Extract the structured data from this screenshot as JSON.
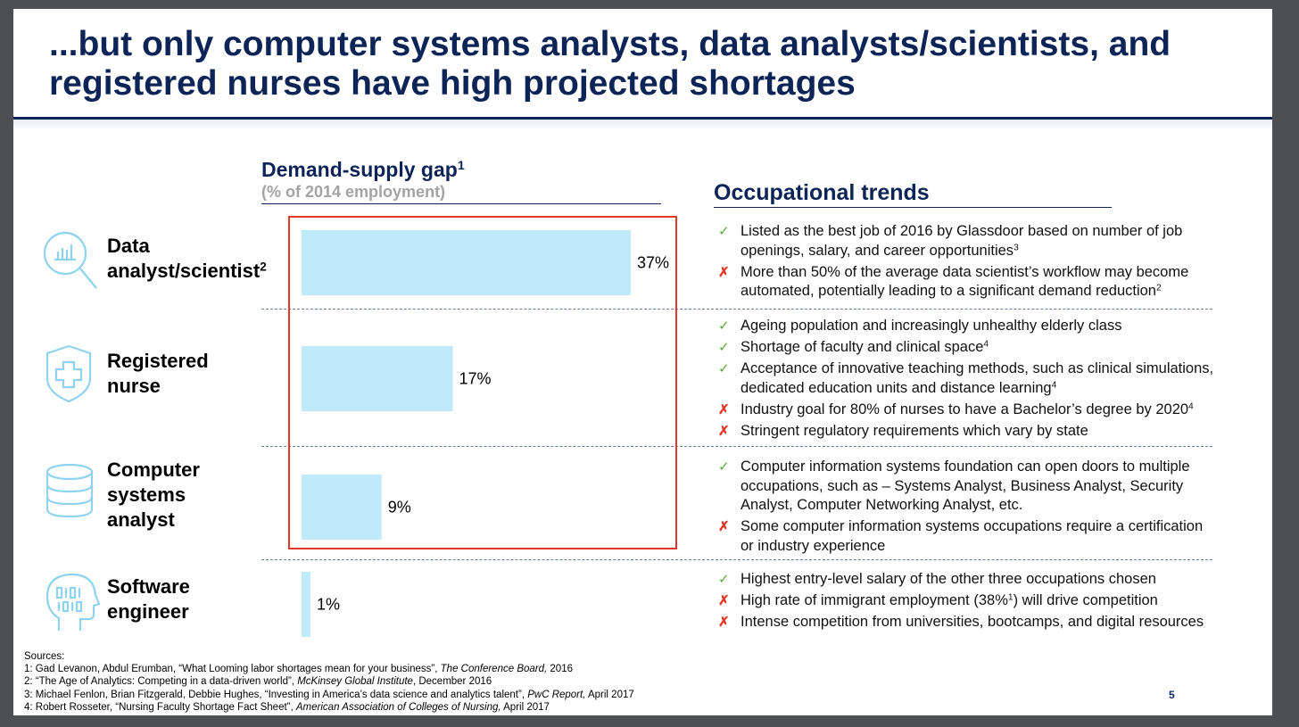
{
  "title": {
    "line1": "...but only computer systems analysts, data analysts/scientists, and",
    "line2": "registered nurses have high projected shortages"
  },
  "chart_header": {
    "title": "Demand-supply gap",
    "title_sup": "1",
    "subtitle": "(% of 2014 employment)"
  },
  "trends_header": "Occupational trends",
  "rows": [
    {
      "label": "Data",
      "label2": "analyst/scientist",
      "label2_sup": "2",
      "icon": "magnifier-chart-icon"
    },
    {
      "label": "Registered",
      "label2": "nurse",
      "icon": "medical-shield-icon"
    },
    {
      "label": "Computer",
      "label2": "systems",
      "label3": "analyst",
      "icon": "database-icon"
    },
    {
      "label": "Software",
      "label2": "engineer",
      "icon": "head-binary-icon"
    }
  ],
  "chart_data": {
    "type": "bar",
    "orientation": "horizontal",
    "categories": [
      "Data analyst/scientist",
      "Registered nurse",
      "Computer systems analyst",
      "Software engineer"
    ],
    "values": [
      37,
      17,
      9,
      1
    ],
    "value_labels": [
      "37%",
      "17%",
      "9%",
      "1%"
    ],
    "unit": "%",
    "title": "Demand-supply gap",
    "subtitle": "(% of 2014 employment)",
    "xlim": [
      0,
      37
    ],
    "grid": false,
    "bar_color": "#bfeaf9",
    "highlight_color": "#e0392b"
  },
  "trends": [
    [
      {
        "type": "pos",
        "text": "Listed as the best job of 2016 by Glassdoor based on number of job openings, salary, and career opportunities",
        "sup": "3"
      },
      {
        "type": "neg",
        "text": "More than 50% of the average data scientist’s workflow may become automated, potentially leading to a significant demand reduction",
        "sup": "2"
      }
    ],
    [
      {
        "type": "pos",
        "text": "Ageing population and increasingly unhealthy elderly class"
      },
      {
        "type": "pos",
        "text": "Shortage of faculty and clinical space",
        "sup": "4"
      },
      {
        "type": "pos",
        "text": "Acceptance of innovative teaching methods, such as clinical simulations, dedicated education units and distance learning",
        "sup": "4"
      },
      {
        "type": "neg",
        "text": "Industry goal for 80% of nurses to have a Bachelor’s degree by 2020",
        "sup": "4"
      },
      {
        "type": "neg",
        "text": "Stringent regulatory requirements which vary by state"
      }
    ],
    [
      {
        "type": "pos",
        "text": "Computer information systems foundation can open doors to multiple occupations, such as – Systems Analyst, Business Analyst, Security Analyst, Computer Networking Analyst, etc."
      },
      {
        "type": "neg",
        "text": "Some computer information systems occupations require a certification or industry experience"
      }
    ],
    [
      {
        "type": "pos",
        "text": "Highest entry-level salary of the other three occupations chosen"
      },
      {
        "type": "neg",
        "text": "High rate of immigrant employment (38%",
        "sup": "1",
        "text_after": ") will drive competition"
      },
      {
        "type": "neg",
        "text": "Intense competition from universities, bootcamps, and digital resources"
      }
    ]
  ],
  "marks": {
    "pos": "✓",
    "neg": "✗"
  },
  "sources": {
    "heading": "Sources:",
    "items": [
      {
        "pre": "1: Gad Levanon, Abdul Erumban, “What Looming labor shortages mean for your business”, ",
        "em": "The Conference Board,",
        "post": " 2016"
      },
      {
        "pre": "2: “The Age of Analytics: Competing in a data-driven world”, ",
        "em": "McKinsey Global Institute",
        "post": ", December 2016"
      },
      {
        "pre": "3: Michael Fenlon, Brian Fitzgerald, Debbie Hughes, “Investing in America’s data science and analytics talent”, ",
        "em": "PwC Report,",
        "post": " April 2017"
      },
      {
        "pre": "4:  Robert Rosseter, “Nursing Faculty Shortage Fact Sheet”, ",
        "em": "American Association of Colleges of Nursing,",
        "post": " April 2017"
      }
    ]
  },
  "page_number": "5",
  "colors": {
    "title": "#0d2457",
    "icon": "#8fd3ee",
    "bar": "#bfeaf9",
    "positive": "#5aa83a",
    "negative": "#e0392b"
  }
}
